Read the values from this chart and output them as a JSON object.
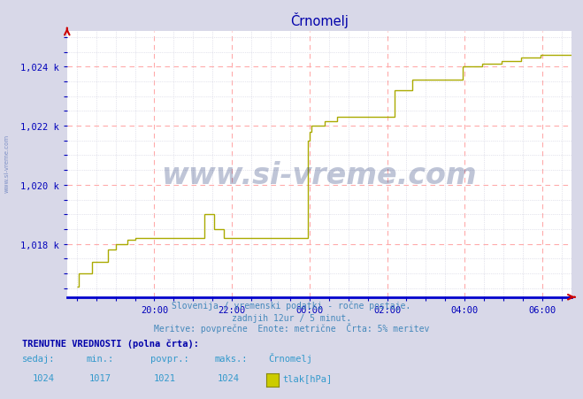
{
  "title": "Črnomelj",
  "bg_color": "#d8d8e8",
  "plot_bg_color": "#ffffff",
  "line_color": "#aaaa00",
  "grid_major_color": "#ffaaaa",
  "grid_minor_color": "#ccccdd",
  "axis_color": "#0000cc",
  "tick_color": "#0000bb",
  "title_color": "#0000aa",
  "watermark_text": "www.si-vreme.com",
  "watermark_color": "#1a3070",
  "sidebar_text": "www.si-vreme.com",
  "subtitle1": "Slovenija / vremenski podatki - ročne postaje.",
  "subtitle2": "zadnjih 12ur / 5 minut.",
  "subtitle3": "Meritve: povprečne  Enote: metrične  Črta: 5% meritev",
  "footer_bold": "TRENUTNE VREDNOSTI (polna črta):",
  "footer_cols": [
    "sedaj:",
    "min.:",
    "povpr.:",
    "maks.:",
    "Črnomelj"
  ],
  "footer_vals": [
    "1024",
    "1017",
    "1021",
    "1024",
    "tlak[hPa]"
  ],
  "legend_color": "#cccc00",
  "ylim": [
    1016.2,
    1025.2
  ],
  "yticks": [
    1018,
    1020,
    1022,
    1024
  ],
  "ytick_labels": [
    "1,018 k",
    "1,020 k",
    "1,022 k",
    "1,024 k"
  ],
  "xlim": [
    -0.25,
    12.75
  ],
  "xtick_positions": [
    2,
    4,
    6,
    8,
    10,
    12
  ],
  "xtick_labels": [
    "20:00",
    "22:00",
    "00:00",
    "02:00",
    "04:00",
    "06:00"
  ],
  "x_hours": [
    0,
    0.05,
    0.05,
    0.5,
    0.5,
    1.0,
    1.0,
    1.2,
    1.2,
    1.5,
    1.5,
    3.5,
    3.5,
    3.7,
    3.7,
    4.0,
    4.0,
    5.9,
    5.9,
    6.0,
    6.0,
    6.05,
    6.05,
    6.5,
    6.5,
    6.8,
    6.8,
    8.3,
    8.3,
    8.7,
    8.7,
    10.0,
    10.0,
    10.5,
    10.5,
    11.0,
    11.0,
    11.5,
    11.5,
    12.0,
    12.0,
    12.75
  ],
  "y_hours": [
    1016.5,
    1016.5,
    1017.0,
    1017.0,
    1017.5,
    1017.5,
    1018.0,
    1018.0,
    1018.1,
    1018.1,
    1018.2,
    1018.2,
    1019.0,
    1019.0,
    1018.5,
    1018.5,
    1018.2,
    1018.2,
    1021.5,
    1021.5,
    1021.8,
    1021.8,
    1022.0,
    1022.0,
    1022.1,
    1022.1,
    1022.3,
    1022.3,
    1023.2,
    1023.2,
    1023.6,
    1023.6,
    1024.0,
    1024.0,
    1024.1,
    1024.1,
    1024.2,
    1024.2,
    1024.3,
    1024.3,
    1024.4,
    1024.4
  ]
}
